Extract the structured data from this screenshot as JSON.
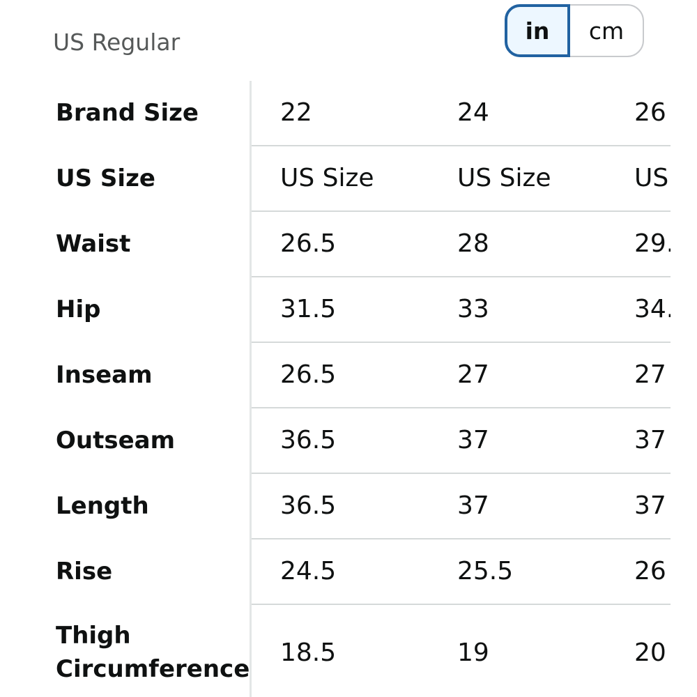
{
  "header": {
    "region_label": "US Regular"
  },
  "unit_toggle": {
    "selected": "in",
    "options": [
      "in",
      "cm"
    ]
  },
  "table": {
    "rows": [
      {
        "label": "Brand Size",
        "values": [
          "22",
          "24",
          "26"
        ]
      },
      {
        "label": "US Size",
        "values": [
          "US Size",
          "US Size",
          "US"
        ]
      },
      {
        "label": "Waist",
        "values": [
          "26.5",
          "28",
          "29."
        ]
      },
      {
        "label": "Hip",
        "values": [
          "31.5",
          "33",
          "34."
        ]
      },
      {
        "label": "Inseam",
        "values": [
          "26.5",
          "27",
          "27"
        ]
      },
      {
        "label": "Outseam",
        "values": [
          "36.5",
          "37",
          "37"
        ]
      },
      {
        "label": "Length",
        "values": [
          "36.5",
          "37",
          "37"
        ]
      },
      {
        "label": "Rise",
        "values": [
          "24.5",
          "25.5",
          "26"
        ]
      },
      {
        "label": "Thigh Circumference",
        "label_lines": [
          "Thigh",
          "Circumference"
        ],
        "values": [
          "18.5",
          "19",
          "20"
        ]
      }
    ]
  },
  "colors": {
    "toggle_selected_border": "#2162a1",
    "toggle_selected_bg": "#edf7ff",
    "divider": "#d5d9d9",
    "secondary_text": "#565959"
  }
}
